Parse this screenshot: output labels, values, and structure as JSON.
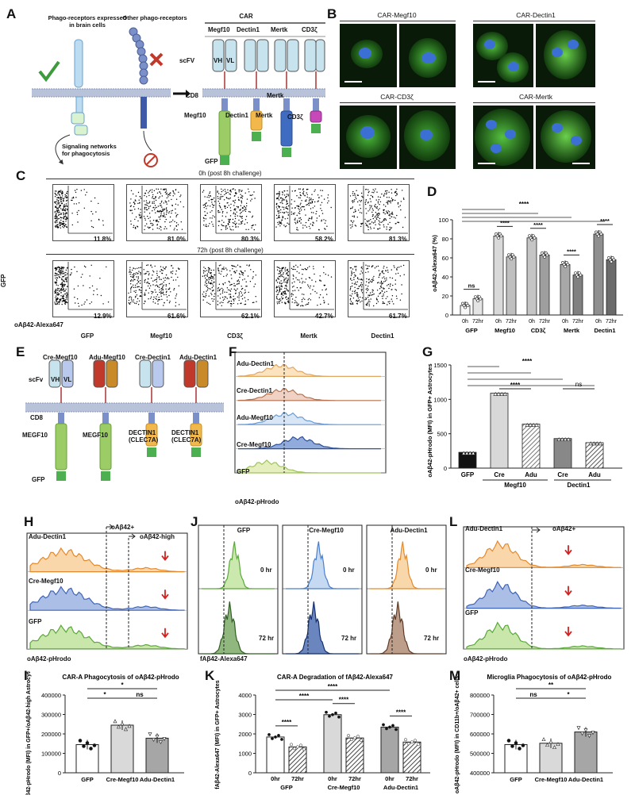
{
  "panel_letters": [
    "A",
    "B",
    "C",
    "D",
    "E",
    "F",
    "G",
    "H",
    "I",
    "J",
    "K",
    "L",
    "M"
  ],
  "panelA": {
    "brain_receptors": "Phago-receptors expressed in brain cells",
    "other_receptors": "Other phago-receptors",
    "signaling": "Signaling networks for phagocytosis",
    "car_title": "CAR",
    "constructs": [
      "Megf10",
      "Dectin1",
      "Mertk",
      "CD3ζ"
    ],
    "scfv": "scFV",
    "vh": "VH",
    "vl": "VL",
    "cd8": "CD8",
    "mertk": "Mertk",
    "intracellular": [
      "Megf10",
      "Dectin1",
      "Mertk",
      "CD3ζ"
    ],
    "gfp": "GFP"
  },
  "panelB": {
    "titles": [
      "CAR-Megf10",
      "CAR-Dectin1",
      "CAR-CD3ζ",
      "CAR-Mertk"
    ]
  },
  "panelC": {
    "row1_title": "0h (post 8h challenge)",
    "row2_title": "72h (post 8h challenge)",
    "row1_pct": [
      "11.8%",
      "81.0%",
      "80.3%",
      "58.2%",
      "81.3%"
    ],
    "row2_pct": [
      "12.9%",
      "61.6%",
      "62.1%",
      "42.7%",
      "61.7%"
    ],
    "columns": [
      "GFP",
      "Megf10",
      "CD3ζ",
      "Mertk",
      "Dectin1"
    ],
    "ylabel": "GFP",
    "xlabel": "oAβ42-Alexa647"
  },
  "chart_data": [
    {
      "id": "D",
      "type": "bar",
      "ylabel": "oAβ42-Alexa647 (%)",
      "ylim": [
        0,
        100
      ],
      "yticks": [
        0,
        20,
        40,
        60,
        80,
        100
      ],
      "groups": [
        "GFP",
        "Megf10",
        "CD3ζ",
        "Mertk",
        "Dectin1"
      ],
      "sublabels": [
        "0h",
        "72hr"
      ],
      "values_0h": [
        10,
        83,
        81,
        53,
        85
      ],
      "values_72h": [
        17,
        61,
        63,
        42,
        58
      ],
      "annotations": [
        "ns",
        "****",
        "****",
        "****",
        "****",
        "****"
      ]
    },
    {
      "id": "G",
      "type": "bar",
      "ylabel": "oAβ42-pHrodo (MFI) in GFP+ Astrocytes",
      "ylim": [
        0,
        1500
      ],
      "yticks": [
        0,
        500,
        1000,
        1500
      ],
      "categories": [
        "GFP",
        "Cre",
        "Adu",
        "Cre",
        "Adu"
      ],
      "group_labels": [
        "Megf10",
        "Dectin1"
      ],
      "values": [
        230,
        1090,
        640,
        430,
        370
      ],
      "annotations": [
        "****",
        "****",
        "ns"
      ]
    },
    {
      "id": "I",
      "type": "bar",
      "title": "CAR-A Phagocytosis of oAβ42-pHrodo",
      "ylabel": "oAβ42-pHrodo (MFI) in GFP+/oAβ42-high Astrocytes",
      "ylim": [
        0,
        400000
      ],
      "yticks": [
        "0",
        "100000",
        "200000",
        "300000",
        "400000"
      ],
      "categories": [
        "GFP",
        "Cre-Megf10",
        "Adu-Dectin1"
      ],
      "values": [
        145000,
        245000,
        178000
      ],
      "annotations": [
        "*",
        "*",
        "ns"
      ]
    },
    {
      "id": "K",
      "type": "bar",
      "title": "CAR-A Degradation of fAβ42-Alexa647",
      "ylabel": "fAβ42-Alexa647 (MFI) in GFP+ Astrocytes",
      "ylim": [
        0,
        4000
      ],
      "yticks": [
        0,
        1000,
        2000,
        3000,
        4000
      ],
      "groups": [
        "GFP",
        "Cre-Megf10",
        "Adu-Dectin1"
      ],
      "sublabels": [
        "0hr",
        "72hr"
      ],
      "values_0h": [
        1840,
        2990,
        2350
      ],
      "values_72h": [
        1330,
        1790,
        1580
      ],
      "annotations": [
        "****",
        "****",
        "****",
        "****",
        "****"
      ]
    },
    {
      "id": "M",
      "type": "bar",
      "title": "Microglia Phagocytosis of oAβ42-pHrodo",
      "ylabel": "oAβ42-pHrodo (MFI) in CD11b+/oAβ42+ cells",
      "ylim": [
        400000,
        800000
      ],
      "yticks": [
        "400000",
        "500000",
        "600000",
        "700000",
        "800000"
      ],
      "categories": [
        "GFP",
        "Cre-Megf10",
        "Adu-Dectin1"
      ],
      "values": [
        545000,
        552000,
        610000
      ],
      "annotations": [
        "**",
        "ns",
        "*"
      ]
    }
  ],
  "panelE": {
    "constructs": [
      "Cre-Megf10",
      "Adu-Megf10",
      "Cre-Dectin1",
      "Adu-Dectin1"
    ],
    "scfv": "scFv",
    "vh": "VH",
    "vl": "VL",
    "cd8": "CD8",
    "intracellular": [
      "MEGF10",
      "MEGF10",
      "DECTIN1 (CLEC7A)",
      "DECTIN1 (CLEC7A)"
    ],
    "gfp": "GFP"
  },
  "panelF": {
    "rows": [
      "Adu-Dectin1",
      "Cre-Dectin1",
      "Adu-Megf10",
      "Cre-Megf10",
      "GFP"
    ],
    "xlabel": "oAβ42-pHrodo"
  },
  "panelH": {
    "rows": [
      "Adu-Dectin1",
      "Cre-Megf10",
      "GFP"
    ],
    "gate1": "oAβ42+",
    "gate2": "oAβ42-high",
    "xlabel": "oAβ42-pHrodo"
  },
  "panelJ": {
    "columns": [
      "GFP",
      "Cre-Megf10",
      "Adu-Dectin1"
    ],
    "times": [
      "0 hr",
      "72 hr"
    ],
    "xlabel": "fAβ42-Alexa647"
  },
  "panelL": {
    "rows": [
      "Adu-Dectin1",
      "Cre-Megf10",
      "GFP"
    ],
    "gate": "oAβ42+",
    "xlabel": "oAβ42-pHrodo"
  }
}
